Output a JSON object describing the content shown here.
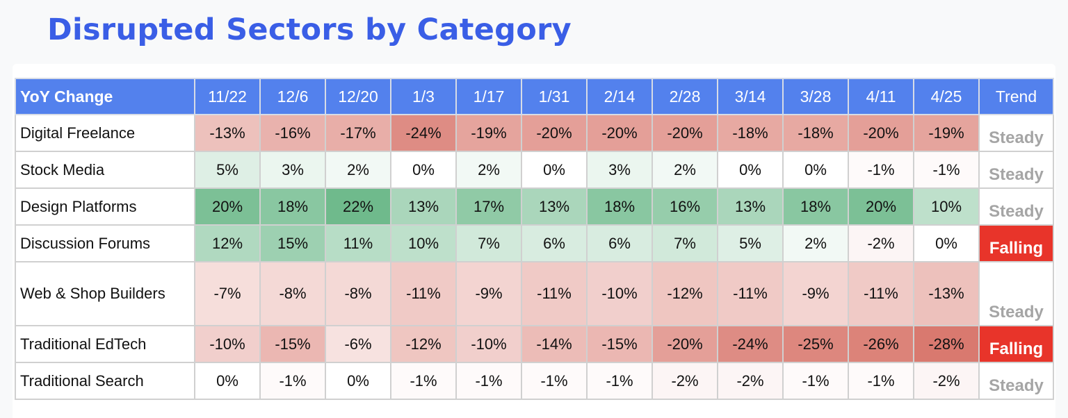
{
  "title": "Disrupted Sectors by Category",
  "chart_data": {
    "type": "heatmap",
    "title": "Disrupted Sectors by Category",
    "corner_label": "YoY Change",
    "trend_header": "Trend",
    "columns": [
      "11/22",
      "12/6",
      "12/20",
      "1/3",
      "1/17",
      "1/31",
      "2/14",
      "2/28",
      "3/14",
      "3/28",
      "4/11",
      "4/25"
    ],
    "rows": [
      {
        "label": "Digital Freelance",
        "values": [
          "-13%",
          "-16%",
          "-17%",
          "-24%",
          "-19%",
          "-20%",
          "-20%",
          "-20%",
          "-18%",
          "-18%",
          "-20%",
          "-19%"
        ],
        "trend": "Steady"
      },
      {
        "label": "Stock Media",
        "values": [
          "5%",
          "3%",
          "2%",
          "0%",
          "2%",
          "0%",
          "3%",
          "2%",
          "0%",
          "0%",
          "-1%",
          "-1%"
        ],
        "trend": "Steady"
      },
      {
        "label": "Design Platforms",
        "values": [
          "20%",
          "18%",
          "22%",
          "13%",
          "17%",
          "13%",
          "18%",
          "16%",
          "13%",
          "18%",
          "20%",
          "10%"
        ],
        "trend": "Steady"
      },
      {
        "label": "Discussion Forums",
        "values": [
          "12%",
          "15%",
          "11%",
          "10%",
          "7%",
          "6%",
          "6%",
          "7%",
          "5%",
          "2%",
          "-2%",
          "0%"
        ],
        "trend": "Falling"
      },
      {
        "label": "Web & Shop Builders",
        "values": [
          "-7%",
          "-8%",
          "-8%",
          "-11%",
          "-9%",
          "-11%",
          "-10%",
          "-12%",
          "-11%",
          "-9%",
          "-11%",
          "-13%"
        ],
        "trend": "Steady"
      },
      {
        "label": "Traditional EdTech",
        "values": [
          "-10%",
          "-15%",
          "-6%",
          "-12%",
          "-10%",
          "-14%",
          "-15%",
          "-20%",
          "-24%",
          "-25%",
          "-26%",
          "-28%"
        ],
        "trend": "Falling"
      },
      {
        "label": "Traditional Search",
        "values": [
          "0%",
          "-1%",
          "0%",
          "-1%",
          "-1%",
          "-1%",
          "-1%",
          "-2%",
          "-2%",
          "-1%",
          "-1%",
          "-2%"
        ],
        "trend": "Steady"
      }
    ],
    "colors": {
      "title": "#3a5ee6",
      "header_bg": "#5381ed",
      "positive_max": "#6fba8c",
      "negative_max": "#d9796f",
      "falling_bg": "#e8342a",
      "steady_text": "#a5a5a5"
    }
  }
}
